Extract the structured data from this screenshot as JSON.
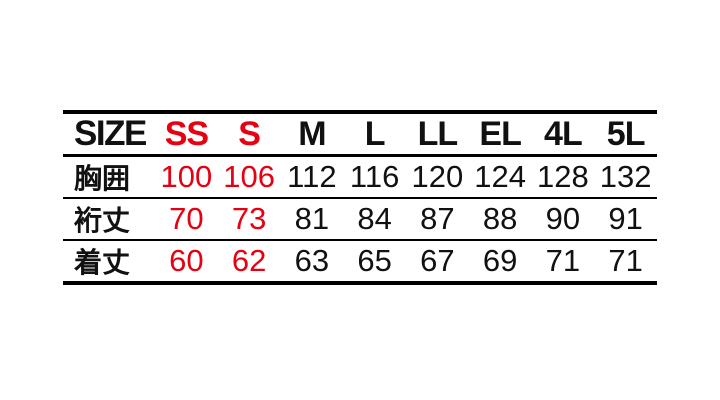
{
  "colors": {
    "background": "#ffffff",
    "text": "#111111",
    "rule_lines": "#000000",
    "highlight_red": "#e60012"
  },
  "table": {
    "header": [
      "SIZE",
      "SS",
      "S",
      "M",
      "L",
      "LL",
      "EL",
      "4L",
      "5L"
    ],
    "rows": [
      {
        "label": "胸囲",
        "values": [
          "100",
          "106",
          "112",
          "116",
          "120",
          "124",
          "128",
          "132"
        ]
      },
      {
        "label": "裄丈",
        "values": [
          "70",
          "73",
          "81",
          "84",
          "87",
          "88",
          "90",
          "91"
        ]
      },
      {
        "label": "着丈",
        "values": [
          "60",
          "62",
          "63",
          "65",
          "67",
          "69",
          "71",
          "71"
        ]
      }
    ]
  },
  "chart_data": {
    "type": "table",
    "title": "",
    "columns": [
      "SIZE",
      "SS",
      "S",
      "M",
      "L",
      "LL",
      "EL",
      "4L",
      "5L"
    ],
    "series": [
      {
        "name": "胸囲",
        "values": [
          100,
          106,
          112,
          116,
          120,
          124,
          128,
          132
        ]
      },
      {
        "name": "裄丈",
        "values": [
          70,
          73,
          81,
          84,
          87,
          88,
          90,
          91
        ]
      },
      {
        "name": "着丈",
        "values": [
          60,
          62,
          63,
          65,
          67,
          69,
          71,
          71
        ]
      }
    ],
    "highlighted_columns": [
      "SS",
      "S"
    ],
    "highlight_color": "#e60012",
    "layout": {
      "grid": "horizontal-rules-only",
      "thick_top_bottom_border": true
    }
  }
}
